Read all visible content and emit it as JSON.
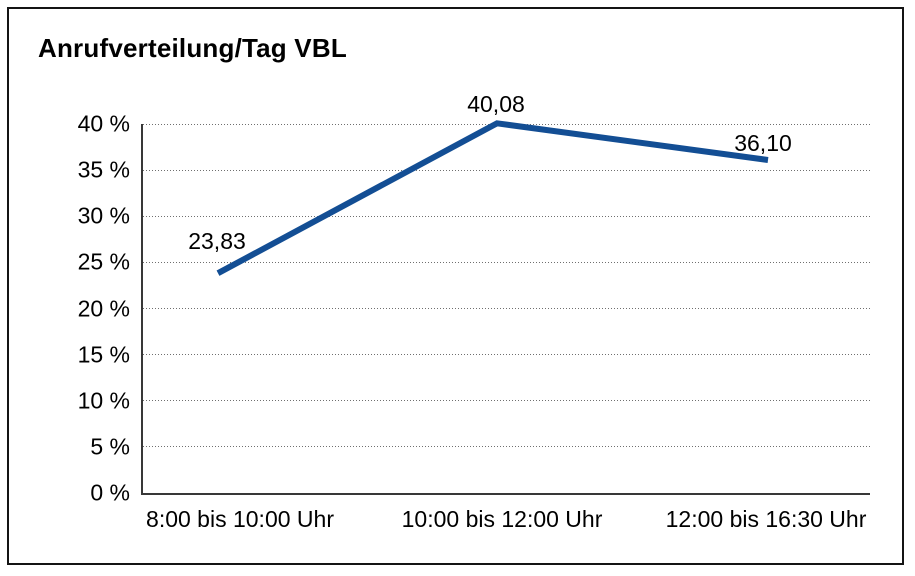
{
  "chart_data": {
    "type": "line",
    "title": "Anrufverteilung/Tag VBL",
    "categories": [
      "8:00 bis 10:00 Uhr",
      "10:00 bis 12:00 Uhr",
      "12:00 bis 16:30 Uhr"
    ],
    "values": [
      23.83,
      40.08,
      36.1
    ],
    "value_labels": [
      "23,83",
      "40,08",
      "36,10"
    ],
    "y_axis": {
      "min": 0,
      "max": 40,
      "tick_values": [
        0,
        5,
        10,
        15,
        20,
        25,
        30,
        35,
        40
      ],
      "tick_labels": [
        "0 %",
        "5 %",
        "10 %",
        "15 %",
        "20 %",
        "25 %",
        "30 %",
        "35 %",
        "40 %"
      ]
    },
    "xlabel": "",
    "ylabel": "",
    "grid": "horizontal-dotted",
    "legend_position": "none",
    "line_color": "#134e94",
    "axis_color": "#383838",
    "grid_color": "#6f6f6f",
    "frame_color": "#141414",
    "text_color": "#000000",
    "background_color": "#ffffff"
  }
}
